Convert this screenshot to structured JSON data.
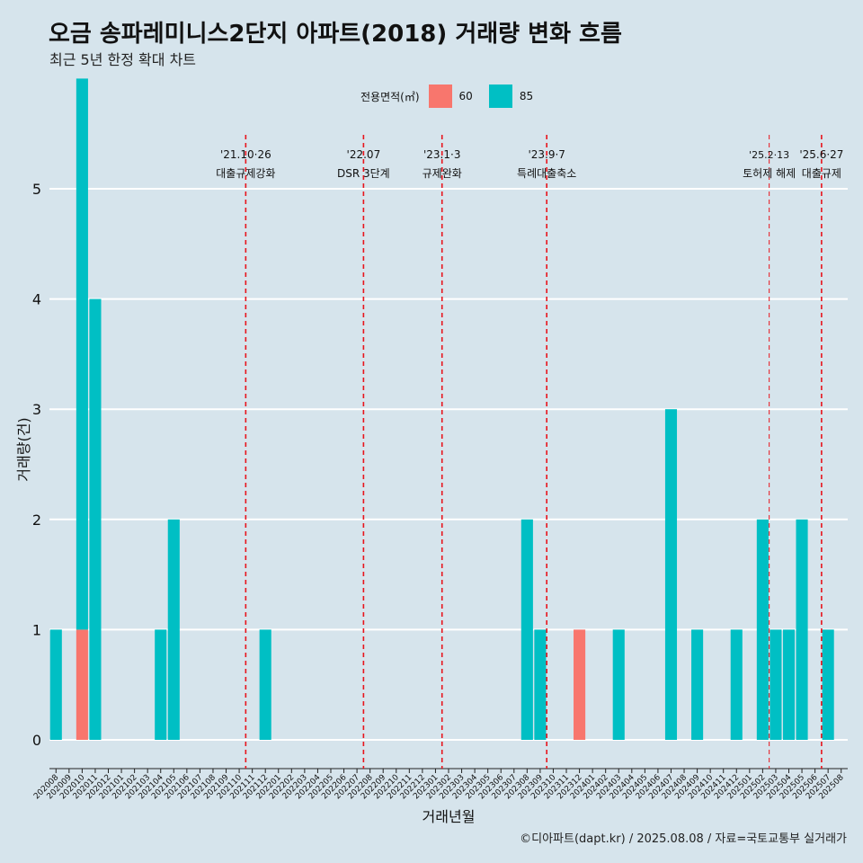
{
  "header": {
    "title": "오금 송파레미니스2단지 아파트(2018) 거래량 변화 흐름",
    "subtitle": "최근 5년 한정 확대 차트"
  },
  "legend": {
    "title": "전용면적(㎡)",
    "items": [
      {
        "label": "60",
        "color": "#F8766D"
      },
      {
        "label": "85",
        "color": "#00BFC4"
      }
    ]
  },
  "caption": "©디아파트(dapt.kr) / 2025.08.08 / 자료=국토교통부 실거래가",
  "chart_data": {
    "type": "bar",
    "title": "오금 송파레미니스2단지 아파트(2018) 거래량 변화 흐름",
    "subtitle": "최근 5년 한정 확대 차트",
    "xlabel": "거래년월",
    "ylabel": "거래량(건)",
    "ylim": [
      0,
      5
    ],
    "yticks": [
      0,
      1,
      2,
      3,
      4,
      5
    ],
    "grid": true,
    "legend_position": "top",
    "categories": [
      "202008",
      "202009",
      "202010",
      "202011",
      "202012",
      "202101",
      "202102",
      "202103",
      "202104",
      "202105",
      "202106",
      "202107",
      "202108",
      "202109",
      "202110",
      "202111",
      "202112",
      "202201",
      "202202",
      "202203",
      "202204",
      "202205",
      "202206",
      "202207",
      "202208",
      "202209",
      "202210",
      "202211",
      "202212",
      "202301",
      "202302",
      "202303",
      "202304",
      "202305",
      "202306",
      "202307",
      "202308",
      "202309",
      "202310",
      "202311",
      "202312",
      "202401",
      "202402",
      "202403",
      "202404",
      "202405",
      "202406",
      "202407",
      "202408",
      "202409",
      "202410",
      "202411",
      "202412",
      "202501",
      "202502",
      "202503",
      "202504",
      "202505",
      "202506",
      "202507",
      "202508"
    ],
    "series": [
      {
        "name": "60",
        "color": "#F8766D",
        "values": [
          0,
          0,
          1,
          0,
          0,
          0,
          0,
          0,
          0,
          0,
          0,
          0,
          0,
          0,
          0,
          0,
          0,
          0,
          0,
          0,
          0,
          0,
          0,
          0,
          0,
          0,
          0,
          0,
          0,
          0,
          0,
          0,
          0,
          0,
          0,
          0,
          0,
          0,
          0,
          0,
          1,
          0,
          0,
          0,
          0,
          0,
          0,
          0,
          0,
          0,
          0,
          0,
          0,
          0,
          0,
          0,
          0,
          0,
          0,
          0,
          0
        ]
      },
      {
        "name": "85",
        "color": "#00BFC4",
        "values": [
          1,
          0,
          5,
          4,
          0,
          0,
          0,
          0,
          1,
          2,
          0,
          0,
          0,
          0,
          0,
          0,
          1,
          0,
          0,
          0,
          0,
          0,
          0,
          0,
          0,
          0,
          0,
          0,
          0,
          0,
          0,
          0,
          0,
          0,
          0,
          0,
          2,
          1,
          0,
          0,
          0,
          0,
          0,
          1,
          0,
          0,
          0,
          3,
          0,
          1,
          0,
          0,
          1,
          0,
          2,
          1,
          1,
          2,
          0,
          1,
          0
        ]
      }
    ],
    "annotations": [
      {
        "date": "'21.10·26",
        "label": "대출규제강화",
        "after": "202110"
      },
      {
        "date": "'22.07",
        "label": "DSR 3단계",
        "after": "202207"
      },
      {
        "date": "'23.1·3",
        "label": "규제완화",
        "after": "202301"
      },
      {
        "date": "'23.9·7",
        "label": "특례대출축소",
        "after": "202309"
      },
      {
        "date": "'25.2·13",
        "label": "토허제 해제",
        "after": "202502"
      },
      {
        "date": "'25.6·27",
        "label": "대출규제",
        "after": "202506"
      }
    ]
  }
}
